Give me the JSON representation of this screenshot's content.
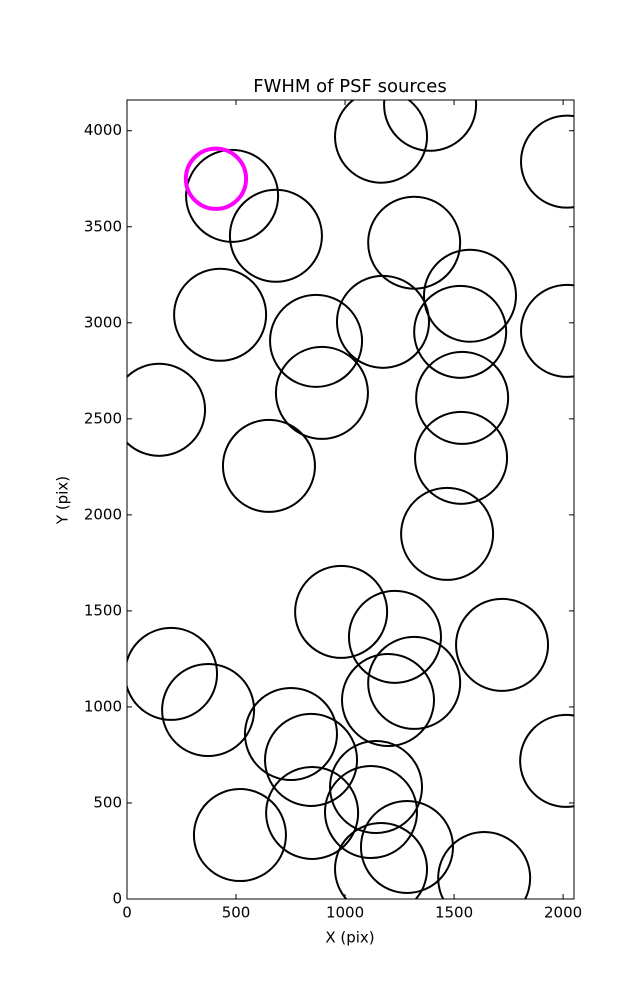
{
  "chart_data": {
    "type": "scatter",
    "title": "FWHM of PSF sources",
    "xlabel": "X (pix)",
    "ylabel": "Y (pix)",
    "xlim": [
      0,
      2050
    ],
    "ylim": [
      0,
      4160
    ],
    "xticks": [
      0,
      500,
      1000,
      1500,
      2000
    ],
    "yticks": [
      0,
      500,
      1000,
      1500,
      2000,
      2500,
      3000,
      3500,
      4000
    ],
    "marker": "circle-outline",
    "series": [
      {
        "color": "#000000",
        "radius": 211,
        "line_width": 2,
        "x": [
          1165,
          1390,
          2018,
          482,
          683,
          1317,
          1573,
          427,
          867,
          1174,
          1528,
          2018,
          894,
          1537,
          147,
          651,
          1532,
          1468,
          982,
          1229,
          1720,
          202,
          1317,
          1197,
          372,
          752,
          2014,
          844,
          1142,
          1119,
          849,
          518,
          1284,
          1638,
          1165
        ],
        "y": [
          3969,
          4135,
          3839,
          3661,
          3453,
          3417,
          3141,
          3042,
          2906,
          3005,
          2953,
          2958,
          2635,
          2609,
          2547,
          2255,
          2297,
          1901,
          1495,
          1365,
          1323,
          1172,
          1125,
          1036,
          984,
          859,
          719,
          724,
          583,
          453,
          448,
          333,
          271,
          109,
          156
        ]
      },
      {
        "color": "#ff00ff",
        "radius": 138,
        "line_width": 4,
        "x": [
          408
        ],
        "y": [
          3750
        ]
      }
    ]
  }
}
